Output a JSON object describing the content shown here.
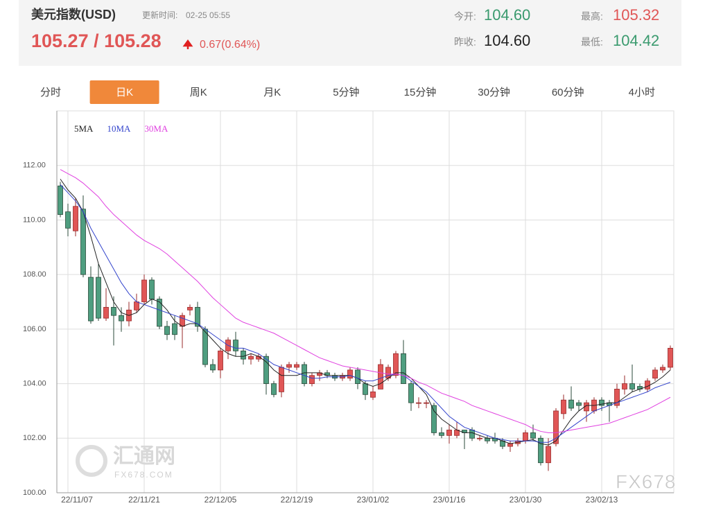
{
  "header": {
    "title": "美元指数(USD)",
    "update_label": "更新时间:",
    "update_time": "02-25 05:55",
    "price": "105.27 / 105.28",
    "change": "0.67(0.64%)",
    "stats": [
      {
        "label": "今开:",
        "value": "104.60"
      },
      {
        "label": "最高:",
        "value": "105.32"
      },
      {
        "label": "昨收:",
        "value": "104.60"
      },
      {
        "label": "最低:",
        "value": "104.42"
      }
    ]
  },
  "tabs": {
    "items": [
      "分时",
      "日K",
      "周K",
      "月K",
      "5分钟",
      "15分钟",
      "30分钟",
      "60分钟",
      "4小时"
    ],
    "active": 1
  },
  "watermarks": {
    "brand": "汇通网",
    "url": "FX678.COM",
    "corner": "FX678"
  },
  "chart_data": {
    "type": "candlestick",
    "categories": [
      null,
      "22/11/07",
      null,
      null,
      null,
      null,
      null,
      null,
      null,
      null,
      null,
      "22/11/21",
      null,
      null,
      null,
      null,
      null,
      null,
      null,
      null,
      null,
      "22/12/05",
      null,
      null,
      null,
      null,
      null,
      null,
      null,
      null,
      null,
      "22/12/19",
      null,
      null,
      null,
      null,
      null,
      null,
      null,
      null,
      null,
      "23/01/02",
      null,
      null,
      null,
      null,
      null,
      null,
      null,
      null,
      null,
      "23/01/16",
      null,
      null,
      null,
      null,
      null,
      null,
      null,
      null,
      null,
      "23/01/30",
      null,
      null,
      null,
      null,
      null,
      null,
      null,
      null,
      null,
      "23/02/13",
      null,
      null,
      null,
      null,
      null,
      null,
      null,
      null,
      null
    ],
    "open": [
      111.25,
      110.3,
      109.6,
      110.4,
      107.9,
      107.9,
      106.4,
      106.8,
      106.5,
      106.3,
      106.7,
      107.0,
      107.8,
      107.1,
      106.1,
      106.2,
      106.1,
      106.7,
      106.8,
      106.0,
      104.7,
      104.5,
      105.2,
      105.6,
      105.2,
      104.9,
      104.9,
      105.0,
      104.0,
      103.7,
      104.6,
      104.6,
      104.7,
      104.0,
      104.3,
      104.4,
      104.3,
      104.2,
      104.2,
      104.5,
      104.0,
      103.5,
      103.8,
      104.2,
      104.3,
      105.1,
      104.0,
      103.3,
      103.3,
      103.2,
      102.2,
      102.1,
      102.1,
      102.3,
      102.3,
      102.0,
      102.0,
      102.0,
      101.9,
      101.7,
      101.8,
      101.9,
      102.2,
      102.0,
      101.1,
      101.8,
      102.9,
      103.4,
      103.3,
      103.0,
      103.0,
      103.4,
      103.3,
      103.2,
      103.8,
      104.0,
      103.9,
      103.8,
      104.2,
      104.5,
      104.6
    ],
    "high": [
      111.4,
      110.6,
      110.8,
      110.9,
      108.3,
      108.4,
      107.5,
      107.2,
      106.8,
      107.0,
      107.3,
      108.0,
      107.9,
      107.2,
      106.3,
      106.5,
      106.6,
      106.9,
      107.0,
      106.1,
      104.9,
      105.3,
      105.7,
      105.9,
      105.3,
      105.1,
      105.1,
      105.1,
      104.1,
      104.7,
      104.8,
      104.8,
      104.8,
      104.4,
      104.5,
      104.5,
      104.4,
      104.4,
      104.6,
      104.6,
      104.1,
      103.9,
      104.9,
      104.7,
      105.2,
      105.6,
      104.1,
      103.5,
      103.4,
      103.3,
      102.4,
      102.5,
      102.6,
      102.3,
      102.4,
      102.1,
      102.1,
      102.2,
      102.0,
      101.9,
      102.0,
      102.3,
      102.5,
      102.1,
      102.0,
      103.1,
      103.6,
      103.9,
      103.4,
      103.4,
      103.5,
      103.5,
      103.4,
      104.0,
      104.3,
      104.7,
      104.0,
      104.2,
      104.6,
      104.7,
      105.4
    ],
    "low": [
      110.1,
      109.4,
      109.4,
      107.9,
      106.2,
      106.3,
      106.3,
      105.4,
      105.9,
      106.1,
      106.6,
      106.9,
      106.9,
      106.0,
      105.6,
      105.6,
      105.3,
      106.5,
      105.9,
      104.6,
      104.4,
      104.2,
      104.9,
      105.0,
      104.7,
      104.7,
      104.8,
      103.6,
      103.5,
      103.5,
      104.4,
      104.5,
      103.9,
      103.9,
      104.1,
      104.2,
      104.1,
      104.1,
      104.1,
      103.8,
      103.4,
      103.4,
      103.8,
      104.1,
      104.2,
      104.0,
      103.0,
      103.1,
      103.1,
      102.1,
      102.0,
      101.8,
      102.0,
      101.6,
      101.9,
      101.9,
      101.8,
      101.8,
      101.6,
      101.5,
      101.7,
      101.8,
      101.9,
      101.0,
      100.8,
      101.7,
      102.7,
      103.0,
      103.0,
      102.6,
      102.9,
      103.0,
      102.6,
      103.1,
      103.6,
      103.7,
      103.7,
      103.7,
      104.1,
      104.4,
      104.5
    ],
    "close": [
      110.2,
      109.7,
      110.5,
      108.0,
      106.3,
      106.4,
      106.8,
      106.5,
      106.3,
      106.7,
      107.0,
      107.8,
      107.1,
      106.1,
      105.8,
      105.8,
      106.5,
      106.8,
      106.1,
      104.7,
      104.5,
      105.2,
      105.6,
      105.2,
      104.9,
      105.0,
      105.0,
      104.0,
      103.6,
      104.6,
      104.7,
      104.7,
      104.0,
      104.3,
      104.4,
      104.3,
      104.2,
      104.3,
      104.5,
      104.0,
      103.6,
      103.7,
      104.7,
      104.6,
      105.1,
      104.0,
      103.3,
      103.3,
      103.3,
      102.2,
      102.1,
      102.3,
      102.3,
      102.2,
      102.0,
      102.0,
      101.9,
      101.9,
      101.7,
      101.8,
      101.9,
      102.2,
      102.0,
      101.1,
      101.7,
      103.0,
      103.4,
      103.1,
      103.2,
      103.3,
      103.4,
      103.2,
      103.2,
      103.8,
      104.0,
      103.8,
      103.8,
      104.1,
      104.5,
      104.6,
      105.3
    ],
    "up_color": "#e05656",
    "down_color": "#4f9e80",
    "series": [
      {
        "name": "5MA",
        "color": "#222222",
        "values": [
          111.5,
          111.1,
          110.8,
          110.3,
          109.4,
          108.4,
          107.7,
          107.0,
          106.6,
          106.5,
          106.6,
          106.9,
          107.1,
          107.0,
          106.7,
          106.3,
          106.1,
          106.2,
          106.2,
          105.9,
          105.6,
          105.3,
          105.1,
          105.0,
          105.0,
          105.1,
          105.0,
          104.8,
          104.5,
          104.3,
          104.3,
          104.3,
          104.4,
          104.4,
          104.4,
          104.3,
          104.3,
          104.3,
          104.3,
          104.2,
          104.0,
          103.9,
          104.0,
          104.2,
          104.4,
          104.4,
          104.2,
          103.9,
          103.6,
          103.0,
          102.7,
          102.5,
          102.3,
          102.2,
          102.2,
          102.1,
          102.0,
          102.0,
          101.9,
          101.8,
          101.85,
          101.9,
          101.95,
          101.8,
          101.75,
          101.9,
          102.3,
          102.7,
          103.0,
          103.2,
          103.2,
          103.25,
          103.3,
          103.3,
          103.5,
          103.7,
          103.8,
          103.9,
          104.05,
          104.25,
          104.5
        ]
      },
      {
        "name": "10MA",
        "color": "#3344cc",
        "values": [
          111.3,
          111.0,
          110.7,
          110.3,
          109.7,
          109.2,
          108.7,
          108.2,
          107.7,
          107.3,
          107.0,
          106.9,
          106.8,
          106.7,
          106.6,
          106.5,
          106.4,
          106.3,
          106.2,
          106.0,
          105.8,
          105.6,
          105.4,
          105.3,
          105.3,
          105.2,
          105.1,
          104.9,
          104.7,
          104.6,
          104.5,
          104.4,
          104.3,
          104.2,
          104.2,
          104.25,
          104.25,
          104.25,
          104.3,
          104.2,
          104.1,
          104.1,
          104.2,
          104.3,
          104.35,
          104.3,
          104.1,
          103.9,
          103.7,
          103.4,
          103.1,
          102.8,
          102.6,
          102.4,
          102.3,
          102.2,
          102.1,
          102.0,
          101.95,
          101.9,
          101.9,
          101.9,
          101.9,
          101.85,
          101.85,
          102.0,
          102.2,
          102.4,
          102.6,
          102.8,
          103.0,
          103.1,
          103.2,
          103.3,
          103.4,
          103.5,
          103.6,
          103.7,
          103.85,
          103.95,
          104.05
        ]
      },
      {
        "name": "30MA",
        "color": "#e040e0",
        "values": [
          111.85,
          111.7,
          111.55,
          111.35,
          111.1,
          110.85,
          110.5,
          110.2,
          109.95,
          109.7,
          109.45,
          109.25,
          109.1,
          108.95,
          108.75,
          108.5,
          108.25,
          108.0,
          107.75,
          107.45,
          107.15,
          106.9,
          106.65,
          106.4,
          106.25,
          106.15,
          106.05,
          105.95,
          105.85,
          105.7,
          105.55,
          105.4,
          105.25,
          105.1,
          104.95,
          104.85,
          104.75,
          104.65,
          104.6,
          104.55,
          104.5,
          104.45,
          104.4,
          104.35,
          104.35,
          104.3,
          104.2,
          104.05,
          103.95,
          103.8,
          103.65,
          103.55,
          103.45,
          103.35,
          103.2,
          103.1,
          103.0,
          102.9,
          102.8,
          102.7,
          102.6,
          102.5,
          102.35,
          102.25,
          102.2,
          102.2,
          102.25,
          102.3,
          102.35,
          102.4,
          102.45,
          102.5,
          102.55,
          102.65,
          102.75,
          102.85,
          102.95,
          103.05,
          103.2,
          103.35,
          103.5
        ]
      }
    ],
    "ylim": [
      100,
      114
    ],
    "yticks": [
      {
        "value": 100,
        "label": "100.00"
      },
      {
        "value": 102,
        "label": "102.00"
      },
      {
        "value": 104,
        "label": "104.00"
      },
      {
        "value": 106,
        "label": "106.00"
      },
      {
        "value": 108,
        "label": "108.00"
      },
      {
        "value": 110,
        "label": "110.00"
      },
      {
        "value": 112,
        "label": "112.00"
      }
    ],
    "grid": true
  }
}
